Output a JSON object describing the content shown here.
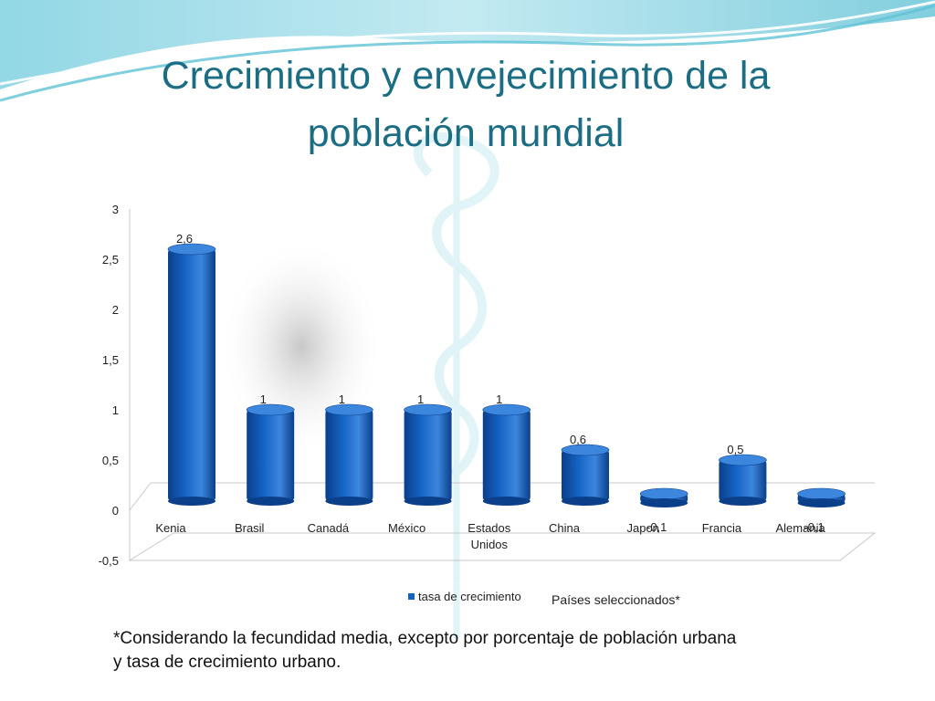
{
  "slide": {
    "title_lines": [
      "Crecimiento y envejecimiento de la",
      "población mundial"
    ],
    "footnote_lines": [
      "*Considerando la fecundidad media, excepto por porcentaje de población urbana",
      "y tasa de crecimiento urbano."
    ]
  },
  "colors": {
    "title": "#1b6d83",
    "bar": "#1463c4",
    "bar_dark": "#0b3f8a",
    "bar_top": "#3c86de",
    "wave": "#5fc3d6"
  },
  "chart_data": {
    "type": "bar",
    "categories": [
      "Kenia",
      "Brasil",
      "Canadá",
      "México",
      "Estados Unidos",
      "China",
      "Japon",
      "Francia",
      "Alemania"
    ],
    "series": [
      {
        "name": "tasa de crecimiento",
        "values": [
          2.6,
          1,
          1,
          1,
          1,
          0.6,
          -0.1,
          0.5,
          -0.1
        ]
      }
    ],
    "data_labels": [
      "2,6",
      "1",
      "1",
      "1",
      "1",
      "0,6",
      "-0,1",
      "0,5",
      "-0,1"
    ],
    "yticks": [
      "3",
      "2,5",
      "2",
      "1,5",
      "1",
      "0,5",
      "0",
      "-0,5"
    ],
    "ylim": [
      -0.5,
      3
    ],
    "xlabel": "Países seleccionados*",
    "ylabel": "",
    "legend_position": "bottom",
    "grid": false
  }
}
